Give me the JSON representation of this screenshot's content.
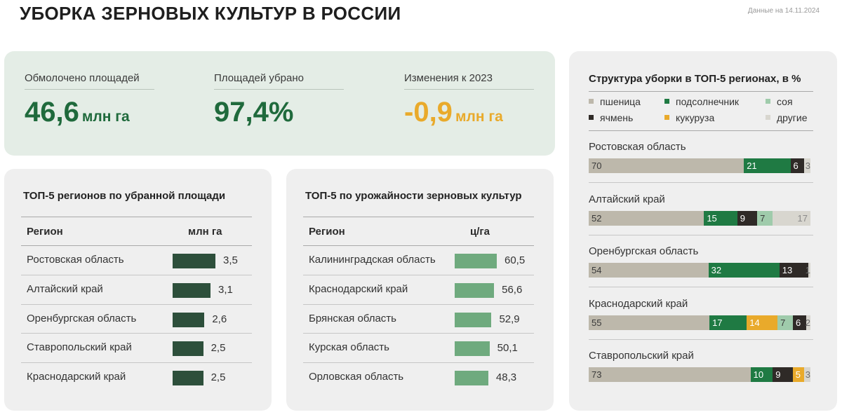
{
  "header": {
    "title": "УБОРКА ЗЕРНОВЫХ КУЛЬТУР В РОССИИ",
    "date_note": "Данные на 14.11.2024"
  },
  "kpis": [
    {
      "label": "Обмолочено площадей",
      "value": "46,6",
      "unit": "млн га",
      "color": "#1f6a3c"
    },
    {
      "label": "Площадей убрано",
      "value": "97,4%",
      "unit": "",
      "color": "#1f6a3c"
    },
    {
      "label": "Изменения к 2023",
      "value": "-0,9",
      "unit": "млн га",
      "color": "#e9aa2b"
    }
  ],
  "colors": {
    "area_bar": "#2d4f3b",
    "yield_bar": "#6faa7e",
    "wheat": "#bdb8ab",
    "sunflower": "#1f7a43",
    "soy": "#9fcbab",
    "barley": "#2f2a27",
    "corn": "#e9aa2b",
    "other": "#d8d6cf"
  },
  "chart_data": [
    {
      "type": "bar",
      "title": "ТОП-5 регионов по убранной площади",
      "column_header": "Регион",
      "unit_header": "млн га",
      "categories": [
        "Ростовская область",
        "Алтайский край",
        "Оренбургская область",
        "Ставропольский край",
        "Краснодарский край"
      ],
      "values": [
        3.5,
        3.1,
        2.6,
        2.5,
        2.5
      ],
      "value_labels": [
        "3,5",
        "3,1",
        "2,6",
        "2,5",
        "2,5"
      ],
      "xlim": [
        0,
        3.5
      ]
    },
    {
      "type": "bar",
      "title": "ТОП-5 по урожайности зерновых культур",
      "column_header": "Регион",
      "unit_header": "ц/га",
      "categories": [
        "Калининградская область",
        "Краснодарский край",
        "Брянская область",
        "Курская область",
        "Орловская область"
      ],
      "values": [
        60.5,
        56.6,
        52.9,
        50.1,
        48.3
      ],
      "value_labels": [
        "60,5",
        "56,6",
        "52,9",
        "50,1",
        "48,3"
      ],
      "xlim": [
        0,
        60.5
      ]
    },
    {
      "type": "bar",
      "stacked": true,
      "title": "Структура уборки в ТОП-5 регионах, в %",
      "legend": [
        {
          "key": "wheat",
          "name": "пшеница"
        },
        {
          "key": "sunflower",
          "name": "подсолнечник"
        },
        {
          "key": "soy",
          "name": "соя"
        },
        {
          "key": "barley",
          "name": "ячмень"
        },
        {
          "key": "corn",
          "name": "кукуруза"
        },
        {
          "key": "other",
          "name": "другие"
        }
      ],
      "regions": [
        {
          "name": "Ростовская область",
          "segments": [
            {
              "key": "wheat",
              "value": 70
            },
            {
              "key": "sunflower",
              "value": 21
            },
            {
              "key": "barley",
              "value": 6
            },
            {
              "key": "other",
              "value": 3
            }
          ]
        },
        {
          "name": "Алтайский край",
          "segments": [
            {
              "key": "wheat",
              "value": 52
            },
            {
              "key": "sunflower",
              "value": 15
            },
            {
              "key": "barley",
              "value": 9
            },
            {
              "key": "soy",
              "value": 7
            },
            {
              "key": "other",
              "value": 17
            }
          ]
        },
        {
          "name": "Оренбургская область",
          "segments": [
            {
              "key": "wheat",
              "value": 54
            },
            {
              "key": "sunflower",
              "value": 32
            },
            {
              "key": "barley",
              "value": 13
            },
            {
              "key": "other",
              "value": 1
            }
          ]
        },
        {
          "name": "Краснодарский край",
          "segments": [
            {
              "key": "wheat",
              "value": 55
            },
            {
              "key": "sunflower",
              "value": 17
            },
            {
              "key": "corn",
              "value": 14
            },
            {
              "key": "soy",
              "value": 7
            },
            {
              "key": "barley",
              "value": 6
            },
            {
              "key": "other",
              "value": 2
            }
          ]
        },
        {
          "name": "Ставропольский край",
          "segments": [
            {
              "key": "wheat",
              "value": 73
            },
            {
              "key": "sunflower",
              "value": 10
            },
            {
              "key": "barley",
              "value": 9
            },
            {
              "key": "corn",
              "value": 5
            },
            {
              "key": "other",
              "value": 3
            }
          ]
        }
      ]
    }
  ]
}
